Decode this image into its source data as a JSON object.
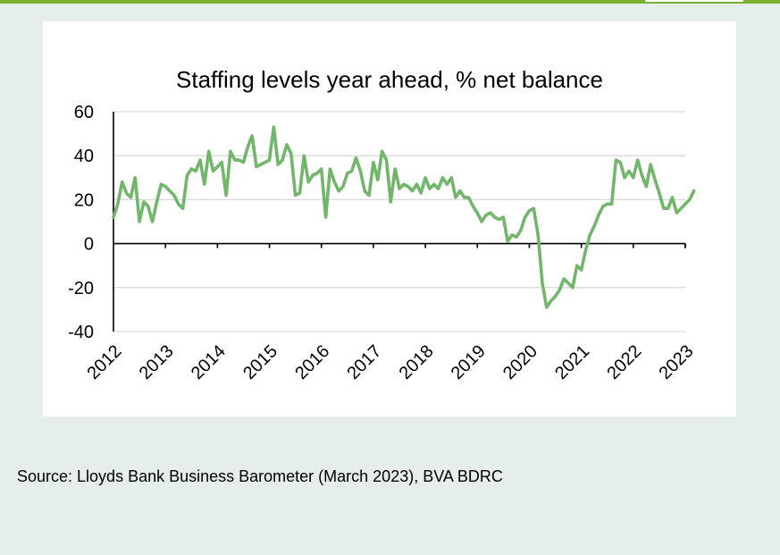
{
  "colors": {
    "accent_bar": "#7bb22d",
    "series_line": "#72b66b",
    "gridline": "#d9d9d9",
    "background": "#e5eeea"
  },
  "source": "Source: Lloyds Bank Business Barometer (March 2023), BVA BDRC",
  "chart_data": {
    "type": "line",
    "title": "Staffing levels year ahead, % net balance",
    "xlabel": "",
    "ylabel": "",
    "ylim": [
      -40,
      60
    ],
    "y_ticks": [
      60,
      40,
      20,
      0,
      -20,
      -40
    ],
    "x_ticks": [
      "2012",
      "2013",
      "2014",
      "2015",
      "2016",
      "2017",
      "2018",
      "2019",
      "2020",
      "2021",
      "2022",
      "2023"
    ],
    "grid": true,
    "legend": "none",
    "series": [
      {
        "x_start": "2012-01",
        "frequency": "monthly",
        "values": [
          12,
          18,
          28,
          23,
          21,
          30,
          10,
          19,
          17,
          10,
          19,
          27,
          26,
          24,
          22,
          18,
          16,
          31,
          34,
          33,
          38,
          27,
          42,
          33,
          35,
          37,
          22,
          42,
          38,
          38,
          37,
          44,
          49,
          35,
          36,
          37,
          38,
          53,
          36,
          38,
          45,
          41,
          22,
          23,
          40,
          28,
          31,
          32,
          34,
          12,
          34,
          28,
          24,
          26,
          32,
          33,
          39,
          33,
          24,
          22,
          37,
          29,
          42,
          38,
          19,
          34,
          25,
          27,
          26,
          24,
          27,
          23,
          30,
          25,
          27,
          25,
          30,
          27,
          30,
          21,
          24,
          21,
          21,
          17,
          14,
          10,
          13,
          14,
          12,
          11,
          12,
          1,
          4,
          3,
          6,
          12,
          15,
          16,
          4,
          -18,
          -29,
          -26,
          -24,
          -21,
          -16,
          -18,
          -20,
          -10,
          -12,
          -3,
          4,
          8,
          13,
          17,
          18,
          18,
          38,
          37,
          30,
          33,
          30,
          38,
          31,
          26,
          36,
          29,
          23,
          16,
          16,
          21,
          14,
          16,
          18,
          20,
          24
        ]
      }
    ]
  }
}
